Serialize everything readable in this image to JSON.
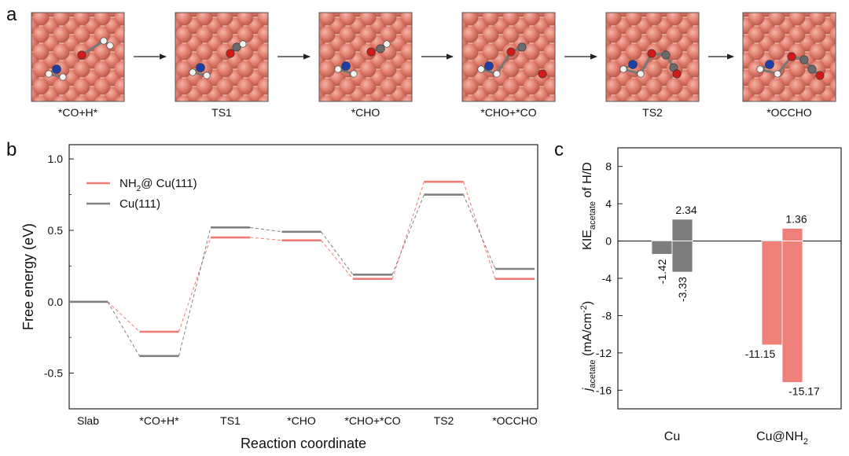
{
  "panel_a": {
    "label": "a",
    "steps": [
      "*CO+H*",
      "TS1",
      "*CHO",
      "*CHO+*CO",
      "TS2",
      "*OCCHO"
    ]
  },
  "colors": {
    "nh2": "#ef7c74",
    "cu": "#808080",
    "bar_cu": "#7d7d7d",
    "bar_nh2": "#f0807a",
    "sphere": "#e07c6c",
    "sphere_bg": "#f2c6bc"
  },
  "chart_data": [
    {
      "panel": "b",
      "type": "line",
      "xlabel": "Reaction coordinate",
      "ylabel": "Free energy (eV)",
      "categories": [
        "Slab",
        "*CO+H*",
        "TS1",
        "*CHO",
        "*CHO+*CO",
        "TS2",
        "*OCCHO"
      ],
      "ylim": [
        -0.75,
        1.1
      ],
      "yticks": [
        -0.5,
        0.0,
        0.5,
        1.0
      ],
      "ytick_labels": [
        "-0.5",
        "0.0",
        "0.5",
        "1.0"
      ],
      "legend_position": "top-left",
      "series": [
        {
          "name_main": "NH",
          "name_sub": "2",
          "name_rest": "@ Cu(111)",
          "name": "NH2@ Cu(111)",
          "color": "#ef7c74",
          "values": [
            0.0,
            -0.21,
            0.45,
            0.43,
            0.16,
            0.84,
            0.16
          ]
        },
        {
          "name": "Cu(111)",
          "color": "#808080",
          "values": [
            0.0,
            -0.38,
            0.52,
            0.49,
            0.19,
            0.75,
            0.23
          ]
        }
      ]
    },
    {
      "panel": "c",
      "type": "bar",
      "categories": [
        "Cu",
        "Cu@NH"
      ],
      "category_subs": [
        "",
        "2"
      ],
      "ylim": [
        -18,
        10
      ],
      "yticks": [
        -16,
        -12,
        -8,
        -4,
        0,
        4,
        8
      ],
      "ytick_labels": [
        "-16",
        "-12",
        "-8",
        "-4",
        "0",
        "4",
        "8"
      ],
      "ylabel_top": {
        "main": "KIE",
        "sub": "acetate",
        "rest": " of H/D"
      },
      "ylabel_bottom": {
        "main": "j",
        "sub": "acetate",
        "rest": " (mA/cm",
        "sup": "-2",
        "end": ")"
      },
      "bars": [
        {
          "group": 0,
          "slot": 0,
          "value": -1.42,
          "label": "-1.42",
          "color": "#7d7d7d"
        },
        {
          "group": 0,
          "slot": 1,
          "value": 2.34,
          "label": "2.34",
          "color": "#7d7d7d"
        },
        {
          "group": 0,
          "slot": 1,
          "value": -3.33,
          "label": "-3.33",
          "color": "#7d7d7d"
        },
        {
          "group": 1,
          "slot": 0,
          "value": -11.15,
          "label": "-11.15",
          "color": "#f0807a"
        },
        {
          "group": 1,
          "slot": 1,
          "value": 1.36,
          "label": "1.36",
          "color": "#f0807a"
        },
        {
          "group": 1,
          "slot": 1,
          "value": -15.17,
          "label": "-15.17",
          "color": "#f0807a"
        }
      ]
    }
  ],
  "labels": {
    "b": "b",
    "c": "c"
  }
}
